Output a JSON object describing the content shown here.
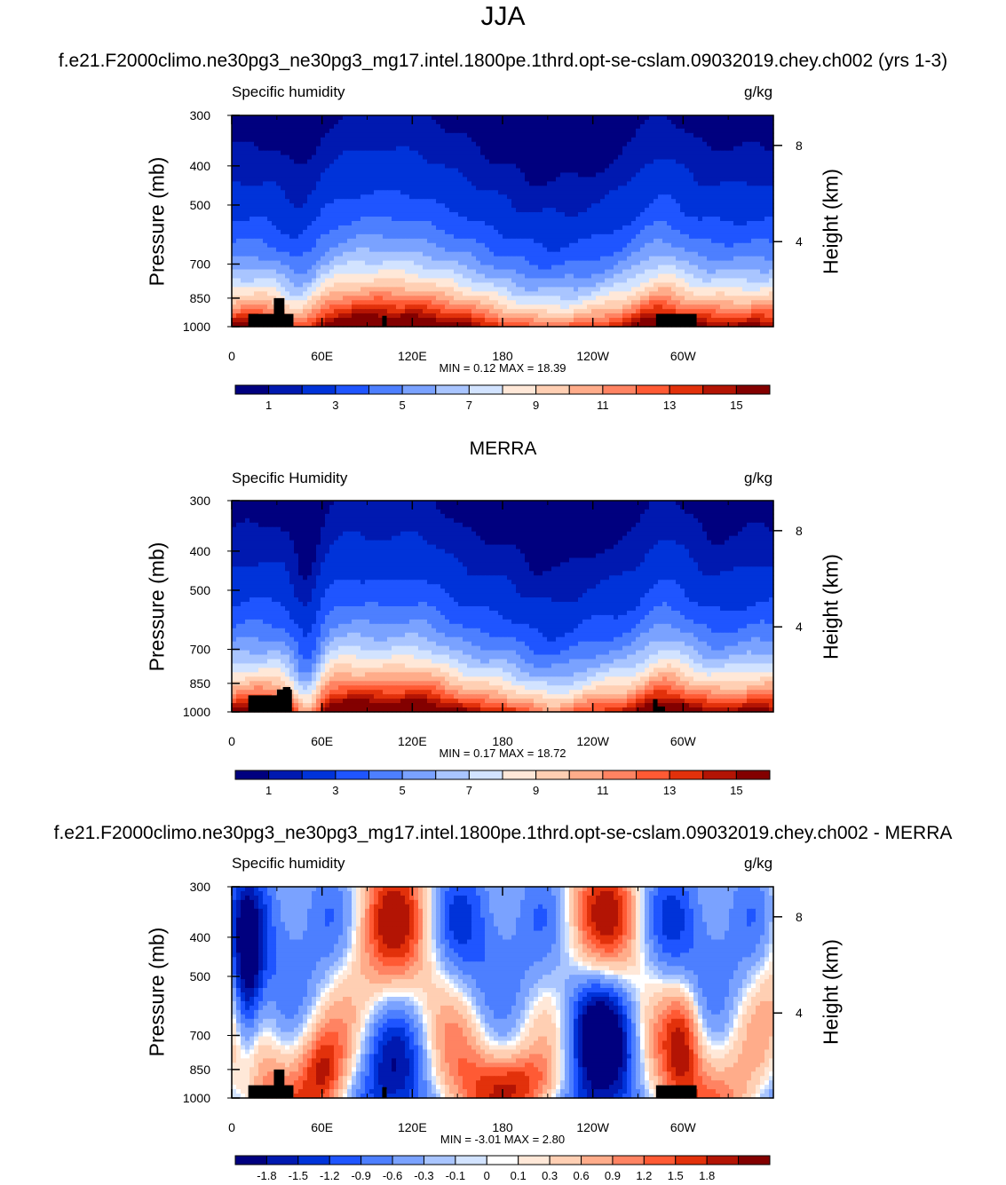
{
  "page": {
    "title": "JJA"
  },
  "colors": {
    "seq": [
      "#00007f",
      "#0019b0",
      "#0033d9",
      "#1f55ff",
      "#4d7fff",
      "#7aa2ff",
      "#a9c5ff",
      "#d2e3ff",
      "#ffe8d8",
      "#ffcfb3",
      "#ffac8a",
      "#ff8362",
      "#ff5a34",
      "#e2310b",
      "#b31404",
      "#830000"
    ],
    "div": [
      "#00007f",
      "#0019b0",
      "#0033d9",
      "#1f55ff",
      "#4d7fff",
      "#7aa2ff",
      "#a9c5ff",
      "#d2e3ff",
      "#ffffff",
      "#ffe8d8",
      "#ffcfb3",
      "#ffac8a",
      "#ff8362",
      "#ff5a34",
      "#e2310b",
      "#b31404",
      "#830000"
    ],
    "land": "#000000"
  },
  "chart_data": [
    {
      "type": "heatmap",
      "title": "f.e21.F2000climo.ne30pg3_ne30pg3_mg17.intel.1800pe.1thrd.opt-se-cslam.09032019.chey.ch002 (yrs 1-3)",
      "left_label": "Specific humidity",
      "right_label": "g/kg",
      "ylabel": "Pressure (mb)",
      "ylabel_right": "Height (km)",
      "x_ticks": [
        "0",
        "60E",
        "120E",
        "180",
        "120W",
        "60W"
      ],
      "y_ticks": [
        "300",
        "400",
        "500",
        "700",
        "850",
        "1000"
      ],
      "y_ticks_right": [
        "8",
        "4"
      ],
      "stats": "MIN =   0.12  MAX =  18.39",
      "colorbar_labels": [
        "1",
        "3",
        "5",
        "7",
        "9",
        "11",
        "13",
        "15"
      ],
      "ylim": [
        1000,
        300
      ],
      "xlim": [
        0,
        360
      ]
    },
    {
      "type": "heatmap",
      "title": "MERRA",
      "left_label": "Specific Humidity",
      "right_label": "g/kg",
      "ylabel": "Pressure (mb)",
      "ylabel_right": "Height (km)",
      "x_ticks": [
        "0",
        "60E",
        "120E",
        "180",
        "120W",
        "60W"
      ],
      "y_ticks": [
        "300",
        "400",
        "500",
        "700",
        "850",
        "1000"
      ],
      "y_ticks_right": [
        "8",
        "4"
      ],
      "stats": "MIN =   0.17  MAX =  18.72",
      "colorbar_labels": [
        "1",
        "3",
        "5",
        "7",
        "9",
        "11",
        "13",
        "15"
      ],
      "ylim": [
        1000,
        300
      ],
      "xlim": [
        0,
        360
      ]
    },
    {
      "type": "heatmap",
      "title": "f.e21.F2000climo.ne30pg3_ne30pg3_mg17.intel.1800pe.1thrd.opt-se-cslam.09032019.chey.ch002 - MERRA",
      "left_label": "Specific humidity",
      "right_label": "g/kg",
      "ylabel": "Pressure (mb)",
      "ylabel_right": "Height (km)",
      "x_ticks": [
        "0",
        "60E",
        "120E",
        "180",
        "120W",
        "60W"
      ],
      "y_ticks": [
        "300",
        "400",
        "500",
        "700",
        "850",
        "1000"
      ],
      "y_ticks_right": [
        "8",
        "4"
      ],
      "stats": "MIN =  -3.01  MAX =   2.80",
      "colorbar_labels": [
        "-1.8",
        "-1.5",
        "-1.2",
        "-0.9",
        "-0.6",
        "-0.3",
        "-0.1",
        "0",
        "0.1",
        "0.3",
        "0.6",
        "0.9",
        "1.2",
        "1.5",
        "1.8"
      ],
      "ylim": [
        1000,
        300
      ],
      "xlim": [
        0,
        360
      ]
    }
  ]
}
